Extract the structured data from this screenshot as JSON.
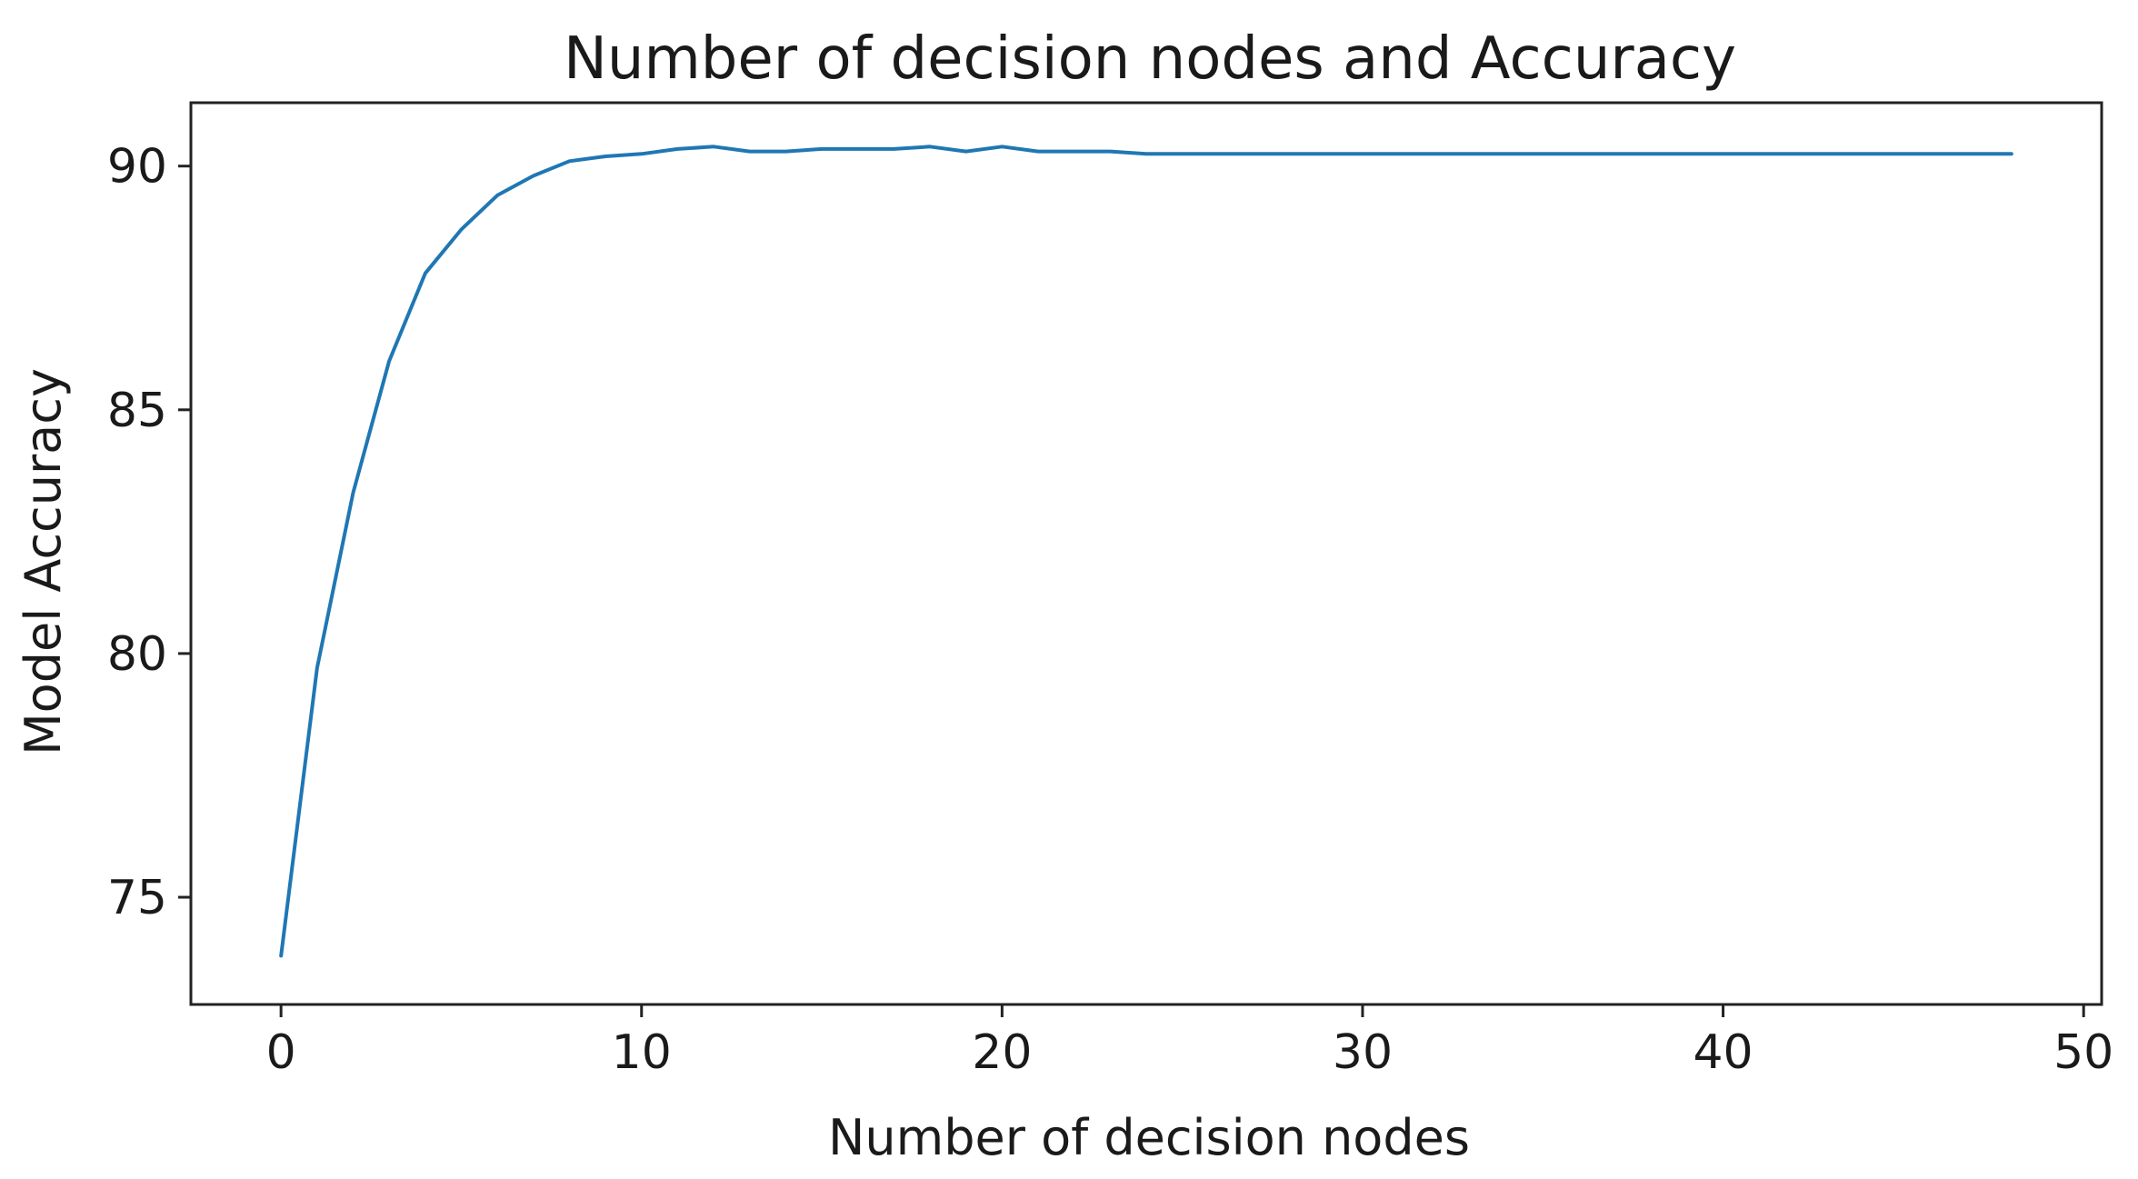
{
  "chart_data": {
    "type": "line",
    "title": "Number of decision nodes and Accuracy",
    "xlabel": "Number of decision nodes",
    "ylabel": "Model Accuracy",
    "xlim": [
      -2.5,
      50.5
    ],
    "ylim": [
      72.8,
      91.3
    ],
    "xticks": [
      0,
      10,
      20,
      30,
      40,
      50
    ],
    "yticks": [
      75,
      80,
      85,
      90
    ],
    "grid": false,
    "series": [
      {
        "color": "#1f77b4",
        "x": [
          0,
          1,
          2,
          3,
          4,
          5,
          6,
          7,
          8,
          9,
          10,
          11,
          12,
          13,
          14,
          15,
          16,
          17,
          18,
          19,
          20,
          21,
          22,
          23,
          24,
          25,
          26,
          27,
          28,
          29,
          30,
          31,
          32,
          33,
          34,
          35,
          36,
          37,
          38,
          39,
          40,
          41,
          42,
          43,
          44,
          45,
          46,
          47,
          48
        ],
        "y": [
          73.8,
          79.7,
          83.3,
          86.0,
          87.8,
          88.7,
          89.4,
          89.8,
          90.1,
          90.2,
          90.25,
          90.35,
          90.4,
          90.3,
          90.3,
          90.35,
          90.35,
          90.35,
          90.4,
          90.3,
          90.4,
          90.3,
          90.3,
          90.3,
          90.25,
          90.25,
          90.25,
          90.25,
          90.25,
          90.25,
          90.25,
          90.25,
          90.25,
          90.25,
          90.25,
          90.25,
          90.25,
          90.25,
          90.25,
          90.25,
          90.25,
          90.25,
          90.25,
          90.25,
          90.25,
          90.25,
          90.25,
          90.25,
          90.25
        ]
      }
    ]
  }
}
